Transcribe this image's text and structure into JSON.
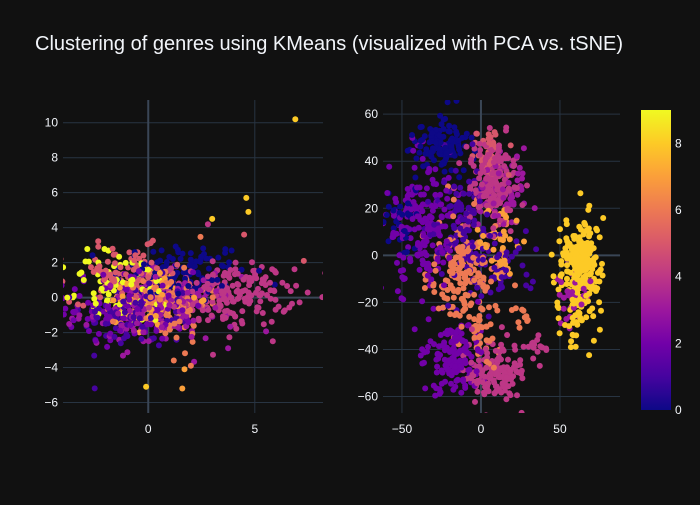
{
  "title": "Clustering of genres using KMeans (visualized with PCA vs. tSNE)",
  "theme": {
    "background": "#111111",
    "grid": "#283442",
    "zeroline": "#3a4656",
    "text": "#f2f5fa"
  },
  "chart_data": [
    {
      "type": "scatter",
      "name": "PCA",
      "xlim": [
        -4,
        8.2
      ],
      "ylim": [
        -6.6,
        11.3
      ],
      "xticks": [
        0,
        5
      ],
      "yticks": [
        -6,
        -4,
        -2,
        0,
        2,
        4,
        6,
        8,
        10
      ],
      "grid": true,
      "color_range": [
        0,
        9
      ],
      "clusters": [
        {
          "label": 0,
          "center": [
            1.5,
            1.4
          ],
          "spread": [
            1.6,
            0.9
          ],
          "n": 120
        },
        {
          "label": 1,
          "center": [
            -0.5,
            -1.0
          ],
          "spread": [
            1.3,
            1.0
          ],
          "n": 110
        },
        {
          "label": 2,
          "center": [
            -0.8,
            -0.5
          ],
          "spread": [
            1.5,
            1.0
          ],
          "n": 130
        },
        {
          "label": 3,
          "center": [
            0.5,
            -0.8
          ],
          "spread": [
            1.8,
            1.0
          ],
          "n": 140
        },
        {
          "label": 4,
          "center": [
            3.8,
            0.2
          ],
          "spread": [
            1.5,
            0.9
          ],
          "n": 190
        },
        {
          "label": 5,
          "center": [
            -1.0,
            1.3
          ],
          "spread": [
            1.3,
            0.8
          ],
          "n": 100
        },
        {
          "label": 6,
          "center": [
            0.8,
            -0.3
          ],
          "spread": [
            1.0,
            1.1
          ],
          "n": 110
        },
        {
          "label": 7,
          "center": [
            0.3,
            0.0
          ],
          "spread": [
            1.0,
            0.9
          ],
          "n": 70
        },
        {
          "label": 9,
          "center": [
            -1.2,
            0.5
          ],
          "spread": [
            1.4,
            1.1
          ],
          "n": 90
        }
      ],
      "extra_points": [
        {
          "x": 6.9,
          "y": 10.2,
          "c": 8
        },
        {
          "x": 4.6,
          "y": 5.7,
          "c": 8
        },
        {
          "x": 4.7,
          "y": 4.9,
          "c": 8
        },
        {
          "x": 3.0,
          "y": 4.5,
          "c": 8
        },
        {
          "x": 4.5,
          "y": 3.6,
          "c": 5
        },
        {
          "x": 7.3,
          "y": 2.1,
          "c": 5
        },
        {
          "x": 2.8,
          "y": 4.2,
          "c": 4
        },
        {
          "x": -0.1,
          "y": -5.1,
          "c": 8
        },
        {
          "x": 1.6,
          "y": -5.2,
          "c": 7
        },
        {
          "x": 1.7,
          "y": -4.1,
          "c": 7
        },
        {
          "x": 2.0,
          "y": -3.9,
          "c": 6
        },
        {
          "x": 1.2,
          "y": -3.6,
          "c": 6
        },
        {
          "x": -3.8,
          "y": 0.0,
          "c": 9
        },
        {
          "x": -3.5,
          "y": -1.3,
          "c": 2
        }
      ]
    },
    {
      "type": "scatter",
      "name": "tSNE",
      "xlim": [
        -62,
        88
      ],
      "ylim": [
        -67,
        66
      ],
      "xticks": [
        -50,
        0,
        50
      ],
      "yticks": [
        -60,
        -40,
        -20,
        0,
        20,
        40,
        60
      ],
      "grid": true,
      "color_range": [
        0,
        9
      ],
      "clusters": [
        {
          "label": 0,
          "center": [
            -25,
            46
          ],
          "spread": [
            8,
            5
          ],
          "n": 130
        },
        {
          "label": 0,
          "center": [
            -50,
            14
          ],
          "spread": [
            5,
            6
          ],
          "n": 35
        },
        {
          "label": 1,
          "center": [
            -12,
            15
          ],
          "spread": [
            10,
            12
          ],
          "n": 90
        },
        {
          "label": 1,
          "center": [
            10,
            -5
          ],
          "spread": [
            12,
            10
          ],
          "n": 60
        },
        {
          "label": 2,
          "center": [
            -37,
            10
          ],
          "spread": [
            12,
            14
          ],
          "n": 200
        },
        {
          "label": 2,
          "center": [
            -18,
            -42
          ],
          "spread": [
            9,
            8
          ],
          "n": 150
        },
        {
          "label": 3,
          "center": [
            15,
            25
          ],
          "spread": [
            8,
            8
          ],
          "n": 60
        },
        {
          "label": 4,
          "center": [
            8,
            32
          ],
          "spread": [
            8,
            11
          ],
          "n": 170
        },
        {
          "label": 4,
          "center": [
            8,
            -50
          ],
          "spread": [
            9,
            6
          ],
          "n": 140
        },
        {
          "label": 4,
          "center": [
            33,
            -38
          ],
          "spread": [
            4,
            3
          ],
          "n": 15
        },
        {
          "label": 5,
          "center": [
            5,
            43
          ],
          "spread": [
            6,
            5
          ],
          "n": 40
        },
        {
          "label": 6,
          "center": [
            -10,
            -8
          ],
          "spread": [
            10,
            13
          ],
          "n": 190
        },
        {
          "label": 6,
          "center": [
            3,
            -38
          ],
          "spread": [
            4,
            4
          ],
          "n": 20
        },
        {
          "label": 6,
          "center": [
            25,
            -26
          ],
          "spread": [
            3,
            3
          ],
          "n": 10
        },
        {
          "label": 7,
          "center": [
            10,
            5
          ],
          "spread": [
            8,
            8
          ],
          "n": 45
        },
        {
          "label": 8,
          "center": [
            63,
            -8
          ],
          "spread": [
            6,
            12
          ],
          "n": 260
        },
        {
          "label": 3,
          "center": [
            60,
            -18
          ],
          "spread": [
            6,
            5
          ],
          "n": 30
        }
      ],
      "extra_points": []
    }
  ],
  "colorbar": {
    "ticks": [
      0,
      2,
      4,
      6,
      8
    ],
    "range": [
      0,
      9
    ],
    "colorscale": [
      "#0d0887",
      "#46039f",
      "#7201a8",
      "#9c179e",
      "#bd3786",
      "#d8576b",
      "#ed7953",
      "#fb9f3a",
      "#fdca26",
      "#f0f921"
    ]
  }
}
